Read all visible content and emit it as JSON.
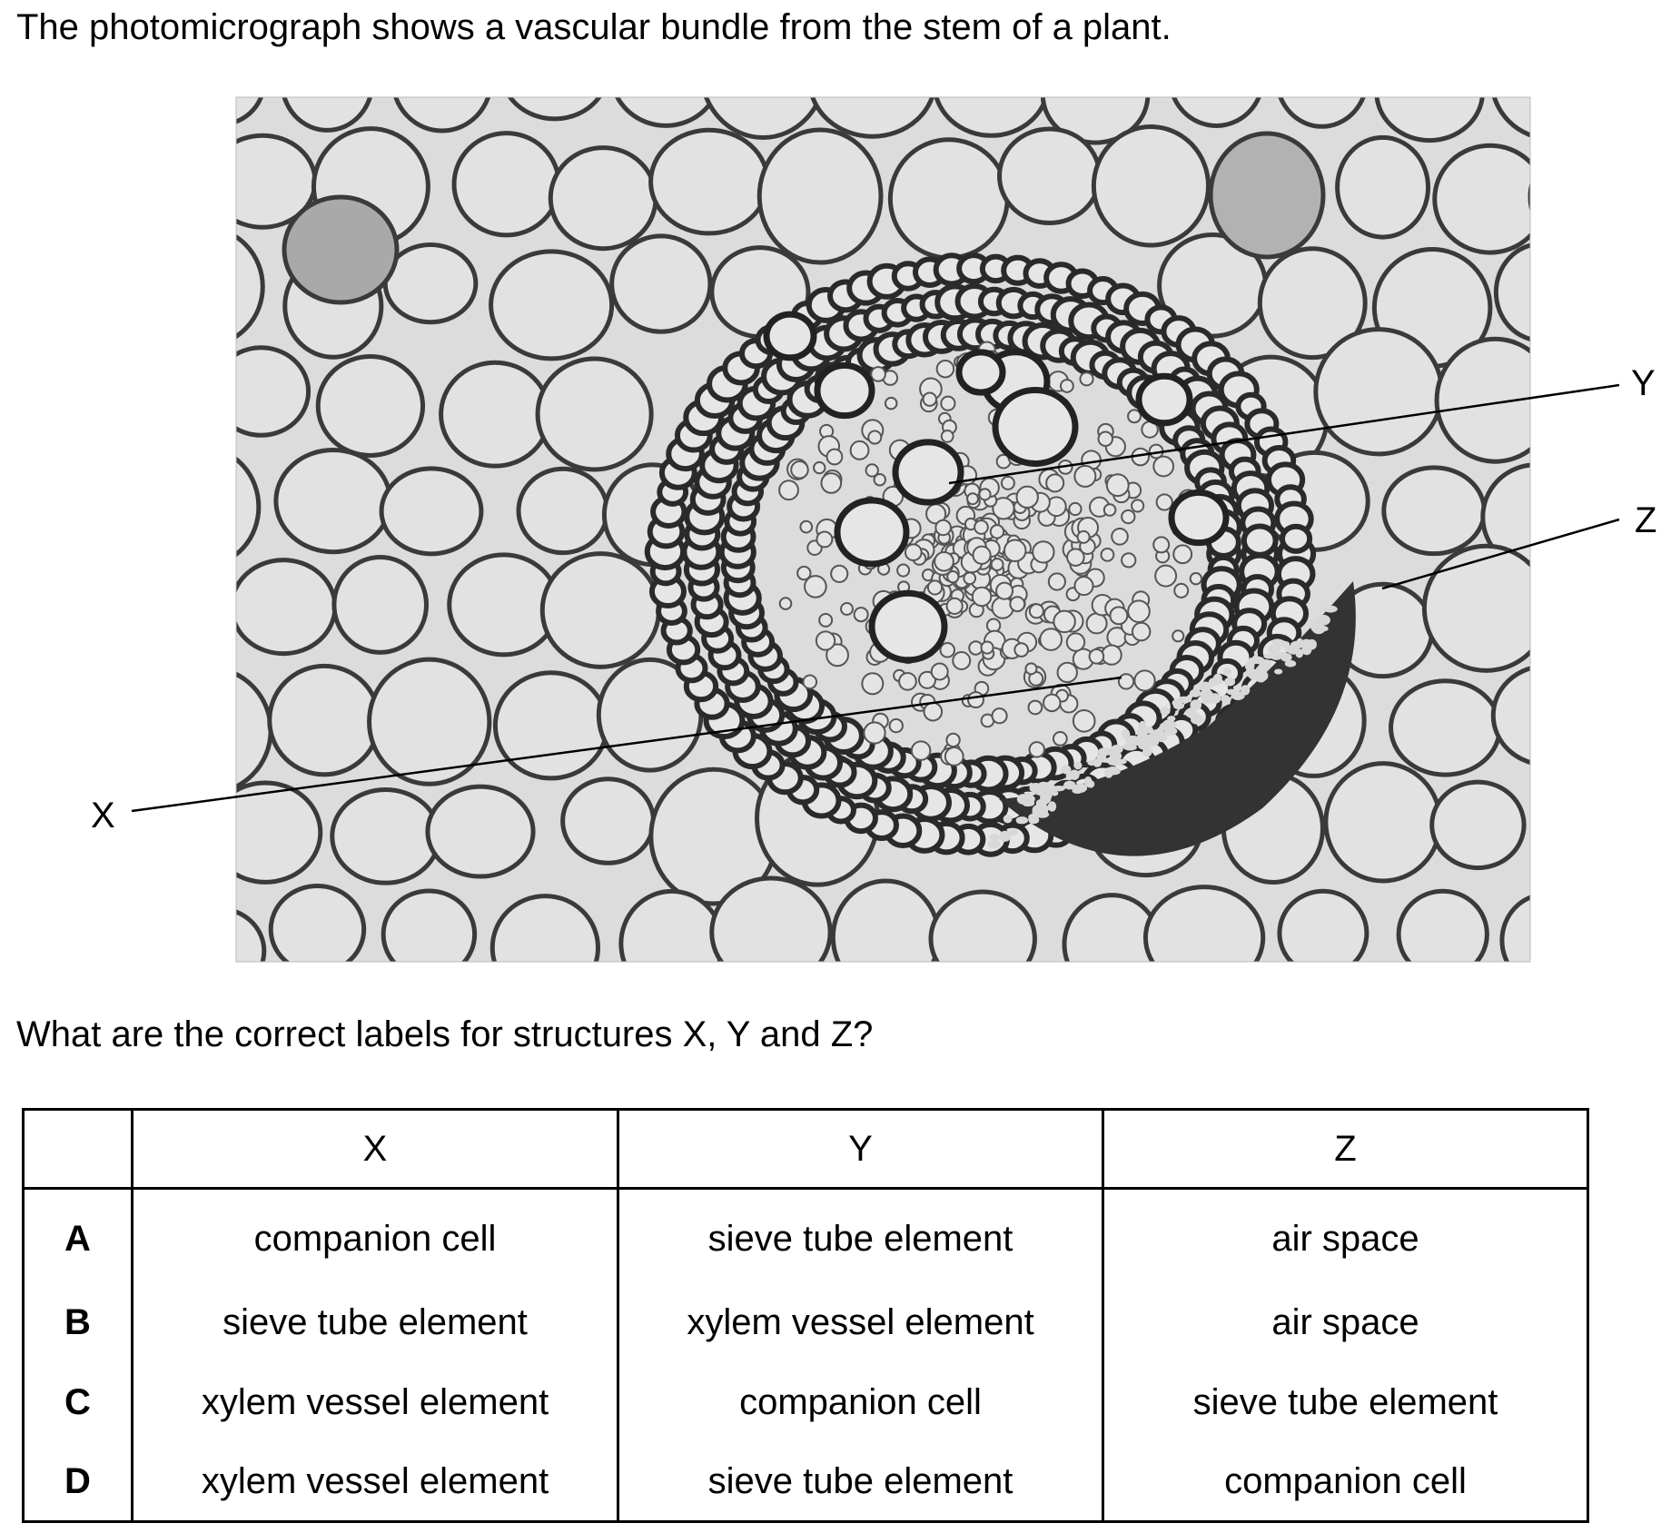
{
  "intro_text": "The photomicrograph shows a vascular bundle from the stem of a plant.",
  "figure": {
    "labels": {
      "x": "X",
      "y": "Y",
      "z": "Z"
    }
  },
  "question_text": "What are the correct labels for structures X, Y and Z?",
  "table": {
    "headers": [
      "",
      "X",
      "Y",
      "Z"
    ],
    "rows": [
      {
        "option": "A",
        "x": "companion cell",
        "y": "sieve tube element",
        "z": "air space"
      },
      {
        "option": "B",
        "x": "sieve tube element",
        "y": "xylem vessel element",
        "z": "air space"
      },
      {
        "option": "C",
        "x": "xylem vessel element",
        "y": "companion cell",
        "z": "sieve tube element"
      },
      {
        "option": "D",
        "x": "xylem vessel element",
        "y": "sieve tube element",
        "z": "companion cell"
      }
    ]
  }
}
